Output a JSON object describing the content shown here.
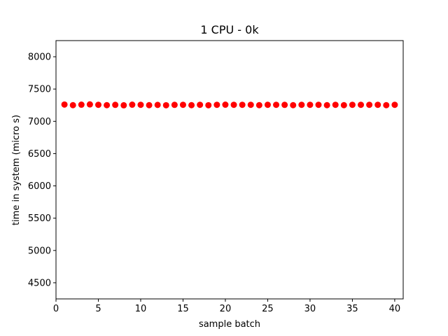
{
  "chart_data": {
    "type": "scatter",
    "title": "1 CPU - 0k",
    "xlabel": "sample batch",
    "ylabel": "time in system (micro s)",
    "xlim": [
      0,
      41
    ],
    "ylim": [
      4250,
      8250
    ],
    "xticks": [
      0,
      5,
      10,
      15,
      20,
      25,
      30,
      35,
      40
    ],
    "yticks": [
      4500,
      5000,
      5500,
      6000,
      6500,
      7000,
      7500,
      8000
    ],
    "grid": false,
    "marker_color": "#ff0000",
    "x": [
      1,
      2,
      3,
      4,
      5,
      6,
      7,
      8,
      9,
      10,
      11,
      12,
      13,
      14,
      15,
      16,
      17,
      18,
      19,
      20,
      21,
      22,
      23,
      24,
      25,
      26,
      27,
      28,
      29,
      30,
      31,
      32,
      33,
      34,
      35,
      36,
      37,
      38,
      39,
      40
    ],
    "y": [
      7260,
      7250,
      7258,
      7262,
      7256,
      7250,
      7255,
      7248,
      7258,
      7256,
      7250,
      7254,
      7249,
      7255,
      7256,
      7250,
      7256,
      7249,
      7256,
      7258,
      7256,
      7256,
      7256,
      7250,
      7256,
      7256,
      7255,
      7250,
      7256,
      7256,
      7256,
      7250,
      7256,
      7250,
      7256,
      7256,
      7256,
      7256,
      7250,
      7256
    ]
  }
}
